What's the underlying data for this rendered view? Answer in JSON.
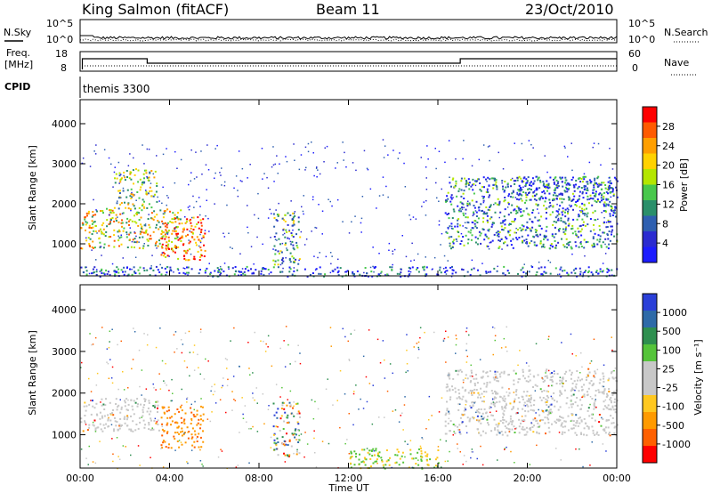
{
  "header": {
    "station": "King Salmon (fitACF)",
    "beam": "Beam 11",
    "date": "23/Oct/2010"
  },
  "top_panels": {
    "nsky_label": "N.Sky",
    "nsky_ticks": [
      "10^5",
      "10^0"
    ],
    "nsearch_label": "N.Search",
    "nsearch_ticks": [
      "10^5",
      "10^0"
    ],
    "freq_label": "Freq.",
    "freq_unit": "[MHz]",
    "freq_ticks": [
      "18",
      "8"
    ],
    "nave_label": "Nave",
    "nave_ticks": [
      "60",
      "0"
    ],
    "cpid_label": "CPID",
    "cpid_value": "themis 3300"
  },
  "chart_data": [
    {
      "type": "heatmap",
      "name": "power",
      "ylabel": "Slant Range [km]",
      "yticks": [
        "4000",
        "3000",
        "2000",
        "1000"
      ],
      "ylim": [
        200,
        4600
      ],
      "xlabel": "Time UT",
      "xticks": [
        "00:00",
        "04:00",
        "08:00",
        "12:00",
        "16:00",
        "20:00",
        "00:00"
      ],
      "xlim_hours": [
        0,
        24
      ],
      "colorbar_label": "Power [dB]",
      "colorbar_ticks": [
        "28",
        "24",
        "20",
        "16",
        "12",
        "8",
        "4"
      ],
      "colorbar_colors": [
        "#ff0000",
        "#ff5a00",
        "#ff9f00",
        "#ffd200",
        "#b4e600",
        "#48c84c",
        "#2a8f6a",
        "#2e5fb0",
        "#2b2bd0",
        "#1c1cff"
      ],
      "regions": [
        {
          "t0": 0.0,
          "t1": 4.6,
          "r0": 900,
          "r1": 1900,
          "level": 0.55
        },
        {
          "t0": 1.5,
          "t1": 3.4,
          "r0": 1900,
          "r1": 2900,
          "level": 0.35
        },
        {
          "t0": 3.6,
          "t1": 5.6,
          "r0": 600,
          "r1": 1700,
          "level": 0.7
        },
        {
          "t0": 8.6,
          "t1": 9.8,
          "r0": 500,
          "r1": 1800,
          "level": 0.25
        },
        {
          "t0": 16.3,
          "t1": 24.0,
          "r0": 900,
          "r1": 2700,
          "level": 0.2
        },
        {
          "t0": 19.5,
          "t1": 24.0,
          "r0": 2100,
          "r1": 2700,
          "level": 0.1
        },
        {
          "t0": 0.0,
          "t1": 24.0,
          "r0": 200,
          "r1": 450,
          "level": 0.1
        }
      ]
    },
    {
      "type": "heatmap",
      "name": "velocity",
      "ylabel": "Slant Range [km]",
      "yticks": [
        "4000",
        "3000",
        "2000",
        "1000"
      ],
      "ylim": [
        200,
        4600
      ],
      "xlabel": "Time UT",
      "xticks": [
        "00:00",
        "04:00",
        "08:00",
        "12:00",
        "16:00",
        "20:00",
        "00:00"
      ],
      "xlim_hours": [
        0,
        24
      ],
      "colorbar_label": "Velocity [m s⁻¹]",
      "colorbar_ticks": [
        "1000",
        "500",
        "100",
        "25",
        "-25",
        "-100",
        "-500",
        "-1000"
      ],
      "colorbar_colors": [
        "#2a3fd8",
        "#2e6aa8",
        "#2e8f4f",
        "#55c43a",
        "#c8c8c8",
        "#c8c8c8",
        "#ffc820",
        "#ff9a00",
        "#ff6000",
        "#ff0000"
      ],
      "regions": [
        {
          "t0": 0.0,
          "t1": 3.5,
          "r0": 1100,
          "r1": 1900,
          "level": "ground"
        },
        {
          "t0": 3.6,
          "t1": 5.5,
          "r0": 700,
          "r1": 1700,
          "level": "neg_strong"
        },
        {
          "t0": 8.6,
          "t1": 9.8,
          "r0": 500,
          "r1": 1800,
          "level": "mixed"
        },
        {
          "t0": 12.0,
          "t1": 16.0,
          "r0": 200,
          "r1": 700,
          "level": "pos"
        },
        {
          "t0": 16.3,
          "t1": 24.0,
          "r0": 1000,
          "r1": 2600,
          "level": "ground"
        }
      ]
    }
  ]
}
